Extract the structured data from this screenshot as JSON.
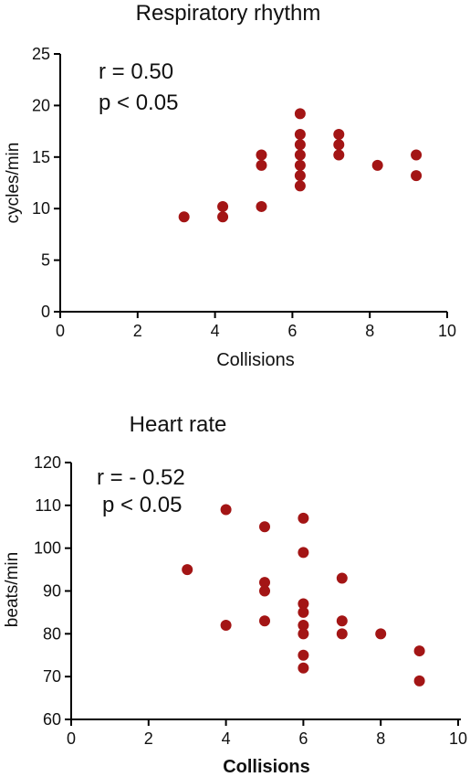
{
  "chart_data": [
    {
      "type": "scatter",
      "title": "Respiratory rhythm",
      "xlabel": "Collisions",
      "ylabel": "cycles/min",
      "xlim": [
        0,
        10
      ],
      "ylim": [
        0,
        25
      ],
      "xticks": [
        "0",
        "2",
        "4",
        "6",
        "8",
        "10"
      ],
      "yticks": [
        "0",
        "5",
        "10",
        "15",
        "20",
        "25"
      ],
      "annotations": [
        "r = 0.50",
        "p < 0.05"
      ],
      "color": "#a31515",
      "points": [
        {
          "x": 3.2,
          "y": 9.2
        },
        {
          "x": 4.2,
          "y": 10.2
        },
        {
          "x": 4.2,
          "y": 9.2
        },
        {
          "x": 5.2,
          "y": 15.2
        },
        {
          "x": 5.2,
          "y": 14.2
        },
        {
          "x": 5.2,
          "y": 10.2
        },
        {
          "x": 6.2,
          "y": 19.2
        },
        {
          "x": 6.2,
          "y": 17.2
        },
        {
          "x": 6.2,
          "y": 16.2
        },
        {
          "x": 6.2,
          "y": 15.2
        },
        {
          "x": 6.2,
          "y": 14.2
        },
        {
          "x": 6.2,
          "y": 13.2
        },
        {
          "x": 6.2,
          "y": 12.2
        },
        {
          "x": 7.2,
          "y": 17.2
        },
        {
          "x": 7.2,
          "y": 16.2
        },
        {
          "x": 7.2,
          "y": 15.2
        },
        {
          "x": 8.2,
          "y": 14.2
        },
        {
          "x": 9.2,
          "y": 15.2
        },
        {
          "x": 9.2,
          "y": 13.2
        }
      ]
    },
    {
      "type": "scatter",
      "title": "Heart rate",
      "xlabel": "Collisions",
      "ylabel": "beats/min",
      "xlim": [
        0,
        10
      ],
      "ylim": [
        60,
        120
      ],
      "xticks": [
        "0",
        "2",
        "4",
        "6",
        "8",
        "10"
      ],
      "yticks": [
        "60",
        "70",
        "80",
        "90",
        "100",
        "110",
        "120"
      ],
      "annotations": [
        "r = - 0.52",
        "p < 0.05"
      ],
      "color": "#a31515",
      "points": [
        {
          "x": 3,
          "y": 95
        },
        {
          "x": 4,
          "y": 109
        },
        {
          "x": 4,
          "y": 82
        },
        {
          "x": 5,
          "y": 105
        },
        {
          "x": 5,
          "y": 92
        },
        {
          "x": 5,
          "y": 90
        },
        {
          "x": 5,
          "y": 83
        },
        {
          "x": 6,
          "y": 107
        },
        {
          "x": 6,
          "y": 99
        },
        {
          "x": 6,
          "y": 87
        },
        {
          "x": 6,
          "y": 85
        },
        {
          "x": 6,
          "y": 82
        },
        {
          "x": 6,
          "y": 80
        },
        {
          "x": 6,
          "y": 75
        },
        {
          "x": 6,
          "y": 72
        },
        {
          "x": 7,
          "y": 93
        },
        {
          "x": 7,
          "y": 83
        },
        {
          "x": 7,
          "y": 80
        },
        {
          "x": 8,
          "y": 80
        },
        {
          "x": 9,
          "y": 76
        },
        {
          "x": 9,
          "y": 69
        }
      ]
    }
  ]
}
